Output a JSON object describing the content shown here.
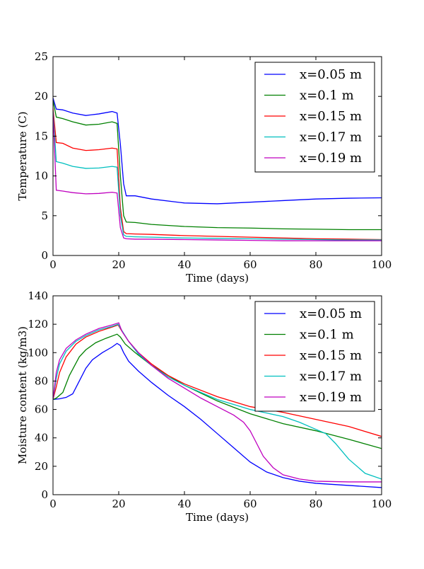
{
  "chart_data": [
    {
      "type": "line",
      "xlabel": "Time (days)",
      "ylabel": "Temperature (C)",
      "xlim": [
        0,
        100
      ],
      "ylim": [
        0,
        25
      ],
      "xticks": [
        0,
        20,
        40,
        60,
        80,
        100
      ],
      "yticks": [
        0,
        5,
        10,
        15,
        20,
        25
      ],
      "grid": false,
      "legend_position": "top-right",
      "series": [
        {
          "name": "x=0.05 m",
          "color": "#0000ff",
          "points": [
            [
              0,
              19.8
            ],
            [
              1,
              18.4
            ],
            [
              3,
              18.3
            ],
            [
              6,
              17.9
            ],
            [
              10,
              17.6
            ],
            [
              14,
              17.8
            ],
            [
              18,
              18.1
            ],
            [
              19.5,
              17.9
            ],
            [
              20.5,
              14.0
            ],
            [
              21.5,
              9.0
            ],
            [
              22.3,
              7.5
            ],
            [
              25,
              7.5
            ],
            [
              30,
              7.1
            ],
            [
              40,
              6.6
            ],
            [
              50,
              6.5
            ],
            [
              60,
              6.7
            ],
            [
              70,
              6.9
            ],
            [
              80,
              7.1
            ],
            [
              90,
              7.2
            ],
            [
              100,
              7.25
            ]
          ]
        },
        {
          "name": "x=0.1 m",
          "color": "#008000",
          "points": [
            [
              0,
              19.5
            ],
            [
              1,
              17.4
            ],
            [
              3,
              17.2
            ],
            [
              6,
              16.8
            ],
            [
              10,
              16.4
            ],
            [
              14,
              16.5
            ],
            [
              18,
              16.8
            ],
            [
              19.5,
              16.6
            ],
            [
              20.5,
              10.0
            ],
            [
              21.5,
              5.0
            ],
            [
              22.3,
              4.2
            ],
            [
              25,
              4.15
            ],
            [
              30,
              3.9
            ],
            [
              40,
              3.65
            ],
            [
              50,
              3.5
            ],
            [
              60,
              3.45
            ],
            [
              70,
              3.35
            ],
            [
              80,
              3.3
            ],
            [
              90,
              3.25
            ],
            [
              100,
              3.25
            ]
          ]
        },
        {
          "name": "x=0.15 m",
          "color": "#ff0000",
          "points": [
            [
              0,
              18.5
            ],
            [
              1,
              14.2
            ],
            [
              3,
              14.1
            ],
            [
              6,
              13.5
            ],
            [
              10,
              13.2
            ],
            [
              14,
              13.3
            ],
            [
              18,
              13.5
            ],
            [
              19.5,
              13.4
            ],
            [
              20.5,
              6.0
            ],
            [
              21.5,
              3.0
            ],
            [
              22.3,
              2.75
            ],
            [
              25,
              2.7
            ],
            [
              30,
              2.65
            ],
            [
              40,
              2.5
            ],
            [
              50,
              2.4
            ],
            [
              60,
              2.3
            ],
            [
              70,
              2.2
            ],
            [
              80,
              2.1
            ],
            [
              90,
              2.05
            ],
            [
              100,
              2.0
            ]
          ]
        },
        {
          "name": "x=0.17 m",
          "color": "#00bfbf",
          "points": [
            [
              0,
              18.2
            ],
            [
              1,
              11.8
            ],
            [
              3,
              11.6
            ],
            [
              6,
              11.2
            ],
            [
              10,
              10.95
            ],
            [
              14,
              11.0
            ],
            [
              18,
              11.2
            ],
            [
              19.5,
              11.1
            ],
            [
              20.5,
              5.0
            ],
            [
              21.5,
              2.6
            ],
            [
              22.3,
              2.4
            ],
            [
              25,
              2.35
            ],
            [
              30,
              2.3
            ],
            [
              40,
              2.2
            ],
            [
              50,
              2.15
            ],
            [
              60,
              2.1
            ],
            [
              70,
              2.05
            ],
            [
              80,
              2.0
            ],
            [
              90,
              1.95
            ],
            [
              100,
              1.95
            ]
          ]
        },
        {
          "name": "x=0.19 m",
          "color": "#bf00bf",
          "points": [
            [
              0,
              18.0
            ],
            [
              1,
              8.2
            ],
            [
              3,
              8.1
            ],
            [
              6,
              7.9
            ],
            [
              10,
              7.75
            ],
            [
              14,
              7.8
            ],
            [
              18,
              7.95
            ],
            [
              19.5,
              7.85
            ],
            [
              20.5,
              3.5
            ],
            [
              21.5,
              2.2
            ],
            [
              22.3,
              2.1
            ],
            [
              25,
              2.05
            ],
            [
              30,
              2.05
            ],
            [
              40,
              2.0
            ],
            [
              50,
              1.95
            ],
            [
              60,
              1.9
            ],
            [
              70,
              1.85
            ],
            [
              80,
              1.85
            ],
            [
              90,
              1.85
            ],
            [
              100,
              1.85
            ]
          ]
        }
      ]
    },
    {
      "type": "line",
      "xlabel": "Time (days)",
      "ylabel": "Moisture content (kg/m3)",
      "xlim": [
        0,
        100
      ],
      "ylim": [
        0,
        140
      ],
      "xticks": [
        0,
        20,
        40,
        60,
        80,
        100
      ],
      "yticks": [
        0,
        20,
        40,
        60,
        80,
        100,
        120,
        140
      ],
      "grid": false,
      "legend_position": "top-right",
      "series": [
        {
          "name": "x=0.05 m",
          "color": "#0000ff",
          "points": [
            [
              0,
              67
            ],
            [
              2,
              67.5
            ],
            [
              4,
              68.5
            ],
            [
              6,
              71
            ],
            [
              8,
              80
            ],
            [
              10,
              89
            ],
            [
              12,
              95
            ],
            [
              15,
              100
            ],
            [
              18,
              104
            ],
            [
              19.5,
              106.5
            ],
            [
              20.5,
              105
            ],
            [
              21.5,
              100
            ],
            [
              23,
              94
            ],
            [
              26,
              87
            ],
            [
              30,
              79
            ],
            [
              35,
              70
            ],
            [
              40,
              62
            ],
            [
              45,
              53
            ],
            [
              50,
              43
            ],
            [
              55,
              33
            ],
            [
              60,
              23
            ],
            [
              65,
              16
            ],
            [
              70,
              12
            ],
            [
              75,
              9.5
            ],
            [
              80,
              8
            ],
            [
              90,
              6.5
            ],
            [
              100,
              5
            ]
          ]
        },
        {
          "name": "x=0.1 m",
          "color": "#008000",
          "points": [
            [
              0,
              67
            ],
            [
              1,
              68
            ],
            [
              3,
              72
            ],
            [
              5,
              84
            ],
            [
              8,
              97
            ],
            [
              10,
              102
            ],
            [
              13,
              107
            ],
            [
              16,
              110
            ],
            [
              19.5,
              113
            ],
            [
              20.5,
              111
            ],
            [
              22,
              106
            ],
            [
              25,
              100
            ],
            [
              30,
              91
            ],
            [
              35,
              84
            ],
            [
              40,
              77
            ],
            [
              50,
              66
            ],
            [
              60,
              57
            ],
            [
              70,
              50
            ],
            [
              80,
              45
            ],
            [
              90,
              39
            ],
            [
              100,
              32.5
            ]
          ]
        },
        {
          "name": "x=0.15 m",
          "color": "#ff0000",
          "points": [
            [
              0,
              67
            ],
            [
              1,
              76
            ],
            [
              2,
              86
            ],
            [
              4,
              97
            ],
            [
              7,
              106
            ],
            [
              10,
              111
            ],
            [
              14,
              115
            ],
            [
              18,
              118
            ],
            [
              19.8,
              119.5
            ],
            [
              21,
              115
            ],
            [
              23,
              108
            ],
            [
              26,
              100
            ],
            [
              30,
              92
            ],
            [
              35,
              84
            ],
            [
              40,
              78
            ],
            [
              50,
              69
            ],
            [
              60,
              62
            ],
            [
              70,
              58
            ],
            [
              80,
              53
            ],
            [
              90,
              48
            ],
            [
              100,
              41
            ]
          ]
        },
        {
          "name": "x=0.17 m",
          "color": "#00bfbf",
          "points": [
            [
              0,
              67
            ],
            [
              1,
              82
            ],
            [
              2,
              92
            ],
            [
              4,
              101
            ],
            [
              7,
              108
            ],
            [
              10,
              112
            ],
            [
              14,
              116
            ],
            [
              18,
              118.5
            ],
            [
              19.8,
              120
            ],
            [
              21,
              115.5
            ],
            [
              23,
              108
            ],
            [
              26,
              99
            ],
            [
              30,
              91
            ],
            [
              35,
              83
            ],
            [
              40,
              77
            ],
            [
              50,
              67
            ],
            [
              60,
              60
            ],
            [
              70,
              55
            ],
            [
              75,
              51
            ],
            [
              80,
              46
            ],
            [
              83,
              43
            ],
            [
              86,
              36
            ],
            [
              90,
              25
            ],
            [
              95,
              15
            ],
            [
              100,
              11
            ]
          ]
        },
        {
          "name": "x=0.19 m",
          "color": "#bf00bf",
          "points": [
            [
              0,
              67
            ],
            [
              1,
              86
            ],
            [
              2,
              95
            ],
            [
              4,
              103
            ],
            [
              7,
              109
            ],
            [
              10,
              113
            ],
            [
              14,
              117
            ],
            [
              18,
              119.5
            ],
            [
              20,
              121
            ],
            [
              21,
              115
            ],
            [
              23,
              108
            ],
            [
              26,
              100
            ],
            [
              30,
              91
            ],
            [
              35,
              82
            ],
            [
              40,
              75
            ],
            [
              45,
              68
            ],
            [
              50,
              62
            ],
            [
              55,
              56
            ],
            [
              58,
              51
            ],
            [
              60,
              45
            ],
            [
              62,
              36
            ],
            [
              64,
              27
            ],
            [
              67,
              19
            ],
            [
              70,
              14
            ],
            [
              75,
              11
            ],
            [
              80,
              9.5
            ],
            [
              90,
              9
            ],
            [
              100,
              9
            ]
          ]
        }
      ]
    }
  ]
}
